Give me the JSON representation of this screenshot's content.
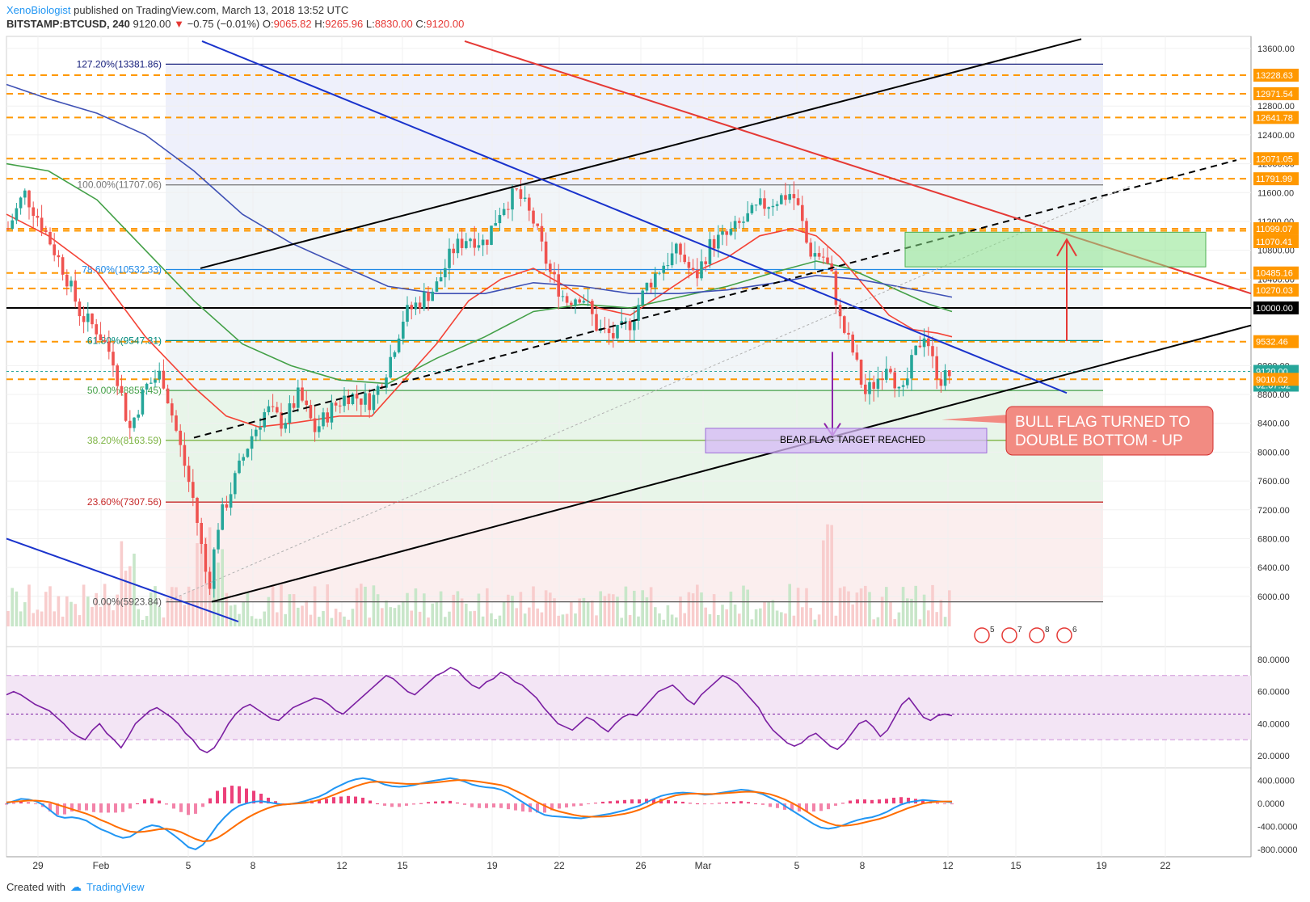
{
  "header": {
    "author": "XenoBiologist",
    "published": "published on TradingView.com, March 13, 2018 13:52 UTC",
    "symbol": "BITSTAMP:BTCUSD, 240",
    "last": "9120.00",
    "change_arrow": "▼",
    "change": "−0.75 (−0.01%)",
    "open_label": "O:",
    "open": "9065.82",
    "high_label": "H:",
    "high": "9265.96",
    "low_label": "L:",
    "low": "8830.00",
    "close_label": "C:",
    "close": "9120.00"
  },
  "footer": {
    "created_with": "Created with",
    "brand": "TradingView"
  },
  "colors": {
    "up": "#26a69a",
    "down": "#ef5350",
    "fib_line": "#ff9800",
    "rsi": "#7b1fa2",
    "macd": "#2196f3",
    "signal": "#ff6d00",
    "hist_pos": "#e91e63",
    "fib_band": "#e8f5e9",
    "green_box": "#8be38b",
    "purple_box": "#d6b8f5"
  },
  "chart_data": [
    {
      "type": "candlestick",
      "pane": "price",
      "title": "",
      "xlabel": "",
      "ylabel": "",
      "y_ticks": [
        "13600.00",
        "12800.00",
        "12400.00",
        "12000.00",
        "11600.00",
        "11200.00",
        "10800.00",
        "10400.00",
        "10000.00",
        "9200.00",
        "8800.00",
        "8400.00",
        "8000.00",
        "7600.00",
        "7200.00",
        "6800.00",
        "6400.00",
        "6000.00"
      ],
      "x_ticks": [
        "29",
        "Feb",
        "5",
        "8",
        "12",
        "15",
        "19",
        "22",
        "26",
        "Mar",
        "5",
        "8",
        "12",
        "15",
        "19",
        "22"
      ],
      "ylim": [
        5700,
        13900
      ],
      "price_tags": [
        {
          "label": "13228.63",
          "kind": "fib"
        },
        {
          "label": "12971.54",
          "kind": "fib"
        },
        {
          "label": "12641.78",
          "kind": "fib"
        },
        {
          "label": "12071.05",
          "kind": "fib"
        },
        {
          "label": "11791.99",
          "kind": "fib"
        },
        {
          "label": "11099.07",
          "kind": "fib"
        },
        {
          "label": "11070.41",
          "kind": "fib"
        },
        {
          "label": "10485.16",
          "kind": "fib"
        },
        {
          "label": "10270.03",
          "kind": "fib"
        },
        {
          "label": "10000.00",
          "kind": "black"
        },
        {
          "label": "9532.46",
          "kind": "fib"
        },
        {
          "label": "9120.00",
          "kind": "last"
        },
        {
          "label": "02:07:52",
          "kind": "timer"
        },
        {
          "label": "9010.02",
          "kind": "fib"
        }
      ],
      "fib_levels": [
        {
          "label": "127.20%(13381.86)",
          "value": 13381.86,
          "color": "#1a237e"
        },
        {
          "label": "100.00%(11707.06)",
          "value": 11707.06,
          "color": "#777777"
        },
        {
          "label": "78.60%(10532.33)",
          "value": 10532.33,
          "color": "#1e88e5"
        },
        {
          "label": "61.80%(9547.31)",
          "value": 9547.31,
          "color": "#00897b"
        },
        {
          "label": "50.00%(8855.45)",
          "value": 8855.45,
          "color": "#43a047"
        },
        {
          "label": "38.20%(8163.59)",
          "value": 8163.59,
          "color": "#7cb342"
        },
        {
          "label": "23.60%(7307.56)",
          "value": 7307.56,
          "color": "#c62828"
        },
        {
          "label": "0.00%(5923.84)",
          "value": 5923.84,
          "color": "#555555"
        }
      ],
      "annotations": [
        {
          "text": "BEAR FLAG TARGET REACHED"
        },
        {
          "text": "BULL FLAG TURNED TO DOUBLE BOTTOM - UP"
        }
      ],
      "event_badges": [
        "5",
        "7",
        "8",
        "6"
      ]
    },
    {
      "type": "line",
      "pane": "rsi",
      "title": "",
      "y_ticks": [
        "80.0000",
        "60.0000",
        "40.0000",
        "20.0000"
      ],
      "ylim": [
        15,
        85
      ],
      "bands": [
        30,
        70
      ],
      "midline": 46,
      "series": [
        {
          "values": [
            58,
            60,
            58,
            55,
            52,
            50,
            48,
            44,
            40,
            35,
            32,
            30,
            36,
            40,
            34,
            30,
            25,
            32,
            40,
            44,
            48,
            50,
            47,
            44,
            40,
            34,
            30,
            24,
            22,
            25,
            32,
            40,
            46,
            50,
            52,
            49,
            46,
            43,
            42,
            46,
            50,
            52,
            54,
            56,
            55,
            52,
            48,
            46,
            50,
            54,
            58,
            62,
            66,
            70,
            68,
            64,
            60,
            58,
            62,
            66,
            70,
            72,
            75,
            73,
            68,
            64,
            62,
            66,
            68,
            72,
            70,
            66,
            64,
            60,
            56,
            50,
            45,
            40,
            38,
            36,
            40,
            44,
            42,
            38,
            35,
            40,
            44,
            46,
            45,
            50,
            55,
            60,
            62,
            64,
            60,
            55,
            52,
            58,
            62,
            66,
            70,
            68,
            65,
            60,
            55,
            50,
            42,
            36,
            32,
            28,
            26,
            28,
            32,
            34,
            30,
            26,
            24,
            28,
            34,
            40,
            42,
            38,
            32,
            36,
            44,
            52,
            56,
            50,
            44,
            42,
            45,
            46,
            45
          ]
        }
      ]
    },
    {
      "type": "line",
      "pane": "macd",
      "title": "",
      "y_ticks": [
        "400.0000",
        "0.0000",
        "-400.0000",
        "-800.0000"
      ],
      "ylim": [
        -900,
        550
      ],
      "series": [
        {
          "name": "",
          "values": [
            0,
            40,
            80,
            70,
            40,
            -20,
            -120,
            -220,
            -250,
            -240,
            -260,
            -300,
            -380,
            -450,
            -500,
            -560,
            -600,
            -580,
            -500,
            -420,
            -380,
            -400,
            -460,
            -550,
            -650,
            -760,
            -800,
            -720,
            -560,
            -380,
            -240,
            -120,
            -40,
            0,
            30,
            40,
            20,
            0,
            -20,
            -10,
            10,
            40,
            80,
            120,
            180,
            260,
            320,
            380,
            420,
            440,
            420,
            380,
            330,
            300,
            290,
            300,
            320,
            350,
            380,
            400,
            420,
            440,
            420,
            380,
            330,
            300,
            280,
            270,
            240,
            180,
            100,
            20,
            -60,
            -140,
            -200,
            -220,
            -230,
            -240,
            -250,
            -260,
            -240,
            -220,
            -200,
            -180,
            -150,
            -120,
            -80,
            -40,
            20,
            80,
            130,
            160,
            180,
            190,
            180,
            170,
            150,
            160,
            180,
            200,
            220,
            240,
            230,
            200,
            160,
            100,
            40,
            -40,
            -120,
            -200,
            -280,
            -360,
            -420,
            -440,
            -420,
            -380,
            -330,
            -290,
            -260,
            -240,
            -200,
            -150,
            -80,
            -20,
            20,
            40,
            60,
            50,
            40,
            30,
            20
          ]
        },
        {
          "name": "",
          "values": [
            20,
            30,
            40,
            50,
            50,
            40,
            20,
            -20,
            -60,
            -100,
            -140,
            -180,
            -230,
            -290,
            -340,
            -400,
            -450,
            -490,
            -500,
            -490,
            -470,
            -450,
            -440,
            -460,
            -500,
            -560,
            -620,
            -660,
            -650,
            -600,
            -520,
            -430,
            -340,
            -260,
            -190,
            -130,
            -80,
            -40,
            -20,
            -10,
            0,
            10,
            30,
            60,
            100,
            150,
            200,
            250,
            300,
            340,
            370,
            380,
            370,
            360,
            350,
            340,
            340,
            345,
            355,
            365,
            380,
            395,
            405,
            405,
            395,
            380,
            360,
            340,
            320,
            280,
            220,
            160,
            90,
            20,
            -40,
            -100,
            -140,
            -170,
            -200,
            -220,
            -230,
            -232,
            -230,
            -220,
            -200,
            -180,
            -150,
            -110,
            -60,
            0,
            50,
            100,
            140,
            160,
            170,
            170,
            165,
            165,
            170,
            180,
            190,
            200,
            205,
            200,
            185,
            160,
            120,
            70,
            10,
            -60,
            -140,
            -220,
            -290,
            -340,
            -380,
            -390,
            -380,
            -360,
            -330,
            -300,
            -270,
            -230,
            -180,
            -130,
            -80,
            -40,
            0,
            20,
            30,
            35,
            35
          ]
        }
      ]
    }
  ]
}
